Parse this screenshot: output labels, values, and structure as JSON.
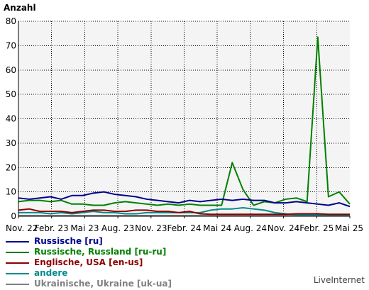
{
  "chart_data": {
    "type": "line",
    "ylabel": "Anzahl",
    "xlabel": "",
    "ylim": [
      0,
      80
    ],
    "y_ticks": [
      0,
      10,
      20,
      30,
      40,
      50,
      60,
      70,
      80
    ],
    "x_tick_labels": [
      "Nov. 22",
      "Febr. 23",
      "Mai 23",
      "Aug. 23",
      "Nov. 23",
      "Febr. 24",
      "Mai 24",
      "Aug. 24",
      "Nov. 24",
      "Febr. 25",
      "Mai 25"
    ],
    "grid": true,
    "legend_placement": "bottom-left",
    "series": [
      {
        "name": "Russische [ru]",
        "color": "#00008b",
        "values": [
          7.5,
          7,
          7.5,
          8,
          7,
          8.5,
          8.5,
          9.5,
          10,
          9,
          8.5,
          8,
          7,
          6.5,
          6,
          5.5,
          6.5,
          6,
          6.5,
          7,
          6.5,
          7,
          6.5,
          6.5,
          5.5,
          5.5,
          6,
          5.5,
          5,
          4.5,
          5.5,
          4
        ]
      },
      {
        "name": "Russische, Russland [ru-ru]",
        "color": "#008000",
        "values": [
          6,
          6.5,
          6.5,
          6,
          6.5,
          5,
          5,
          4.5,
          4.5,
          5.5,
          6,
          5.5,
          5,
          4.5,
          5,
          4.5,
          5,
          4.5,
          4.5,
          4.5,
          22,
          11,
          4.5,
          6,
          5.5,
          7,
          7.5,
          6,
          73.5,
          8,
          10,
          5
        ]
      },
      {
        "name": "Englische, USA [en-us]",
        "color": "#8b0000",
        "values": [
          2.5,
          3,
          2,
          2,
          2,
          1.5,
          2,
          2.5,
          2.5,
          2,
          2,
          2.5,
          2.5,
          2,
          2,
          1.5,
          2,
          1,
          0.8,
          0.8,
          0.8,
          0.8,
          0.8,
          0.8,
          0.8,
          0.8,
          1,
          1,
          1,
          0.8,
          0.8,
          0.8
        ]
      },
      {
        "name": "andere",
        "color": "#008b8b",
        "values": [
          1.5,
          1.5,
          1.5,
          1,
          1.5,
          1,
          1.5,
          2,
          1.5,
          1.5,
          1,
          1,
          1.5,
          1.5,
          1.5,
          1.5,
          1.5,
          1.5,
          2.5,
          3,
          3,
          3.5,
          3,
          2.5,
          1.5,
          1,
          0.5,
          0.5,
          0.5,
          0.3,
          0.3,
          0.3
        ]
      },
      {
        "name": "Ukrainische, Ukraine [uk-ua]",
        "color": "#808080",
        "values": [
          0.3,
          0.3,
          0.3,
          0.3,
          0.3,
          0.3,
          0.3,
          0.3,
          0.3,
          0.3,
          0.3,
          0.3,
          0.3,
          0.3,
          0.3,
          0.3,
          0.3,
          0.3,
          0.3,
          0.3,
          0.3,
          0.3,
          0.3,
          0.3,
          0.3,
          0.3,
          0.3,
          0.3,
          0.3,
          0.3,
          0.3,
          0.3
        ]
      }
    ]
  },
  "branding": "LiveInternet"
}
